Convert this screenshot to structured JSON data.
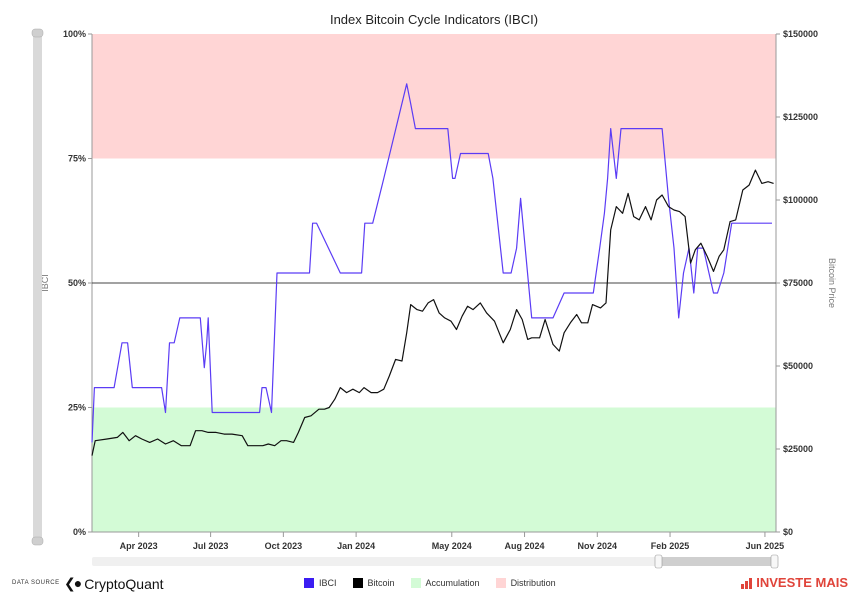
{
  "chart_data": {
    "type": "line",
    "title": "Index Bitcoin Cycle Indicators (IBCI)",
    "ylabel_left": "IBCI",
    "ylabel_right": "Bitcoin Price",
    "ylim_left": [
      0,
      100
    ],
    "ylim_right": [
      0,
      150000
    ],
    "yticks_left": [
      0,
      25,
      50,
      75,
      100
    ],
    "yticks_left_labels": [
      "0%",
      "25%",
      "50%",
      "75%",
      "100%"
    ],
    "yticks_right": [
      0,
      25000,
      50000,
      75000,
      100000,
      125000,
      150000
    ],
    "yticks_right_labels": [
      "$0",
      "$25000",
      "$50000",
      "$75000",
      "$100000",
      "$125000",
      "$150000"
    ],
    "xlim": [
      "2023-02-01",
      "2025-06-15"
    ],
    "xticks": [
      "2023-04-01",
      "2023-07-01",
      "2023-10-01",
      "2024-01-01",
      "2024-05-01",
      "2024-08-01",
      "2024-11-01",
      "2025-02-01",
      "2025-06-01"
    ],
    "xtick_labels": [
      "Apr 2023",
      "Jul 2023",
      "Oct 2023",
      "Jan 2024",
      "May 2024",
      "Aug 2024",
      "Nov 2024",
      "Feb 2025",
      "Jun 2025"
    ],
    "zones": [
      {
        "name": "Distribution",
        "from": 75,
        "to": 100,
        "color": "#ffd5d5"
      },
      {
        "name": "Accumulation",
        "from": 0,
        "to": 25,
        "color": "#d3fbd6"
      }
    ],
    "reference_line": 50,
    "series": [
      {
        "name": "IBCI",
        "color": "#5b3cf5",
        "axis": "left",
        "x": [
          "2023-02-01",
          "2023-02-04",
          "2023-03-01",
          "2023-03-11",
          "2023-03-18",
          "2023-03-24",
          "2023-04-01",
          "2023-04-30",
          "2023-05-05",
          "2023-05-10",
          "2023-05-16",
          "2023-05-23",
          "2023-06-01",
          "2023-06-18",
          "2023-06-23",
          "2023-06-26",
          "2023-06-28",
          "2023-07-03",
          "2023-07-15",
          "2023-08-15",
          "2023-09-01",
          "2023-09-04",
          "2023-09-09",
          "2023-09-16",
          "2023-09-23",
          "2023-10-15",
          "2023-11-03",
          "2023-11-07",
          "2023-11-12",
          "2023-12-12",
          "2023-12-16",
          "2023-12-22",
          "2024-01-02",
          "2024-01-08",
          "2024-01-12",
          "2024-01-22",
          "2024-02-05",
          "2024-03-05",
          "2024-03-10",
          "2024-03-16",
          "2024-03-24",
          "2024-04-05",
          "2024-04-18",
          "2024-04-26",
          "2024-05-02",
          "2024-05-05",
          "2024-05-12",
          "2024-05-19",
          "2024-05-25",
          "2024-06-16",
          "2024-06-22",
          "2024-07-05",
          "2024-07-15",
          "2024-07-22",
          "2024-07-27",
          "2024-08-10",
          "2024-08-16",
          "2024-09-01",
          "2024-09-06",
          "2024-09-20",
          "2024-10-06",
          "2024-10-14",
          "2024-10-20",
          "2024-10-27",
          "2024-11-04",
          "2024-11-10",
          "2024-11-14",
          "2024-11-18",
          "2024-11-25",
          "2024-12-01",
          "2024-12-18",
          "2025-01-15",
          "2025-01-22",
          "2025-01-30",
          "2025-02-06",
          "2025-02-12",
          "2025-02-18",
          "2025-02-25",
          "2025-03-03",
          "2025-03-08",
          "2025-03-15",
          "2025-03-28",
          "2025-04-02",
          "2025-04-10",
          "2025-04-20",
          "2025-04-30",
          "2025-05-15",
          "2025-06-10"
        ],
        "values": [
          18,
          29,
          29,
          38,
          38,
          29,
          29,
          29,
          24,
          38,
          38,
          43,
          43,
          43,
          33,
          38,
          43,
          24,
          24,
          24,
          24,
          29,
          29,
          24,
          52,
          52,
          52,
          62,
          62,
          52,
          52,
          52,
          52,
          52,
          62,
          62,
          71,
          90,
          86,
          81,
          81,
          81,
          81,
          81,
          71,
          71,
          76,
          76,
          76,
          76,
          71,
          52,
          52,
          57,
          67,
          43,
          43,
          43,
          43,
          48,
          48,
          48,
          48,
          48,
          57,
          64,
          71,
          81,
          71,
          81,
          81,
          81,
          81,
          67,
          57,
          43,
          52,
          57,
          48,
          57,
          57,
          48,
          48,
          52,
          62,
          62,
          62,
          62
        ]
      },
      {
        "name": "Bitcoin",
        "color": "#111111",
        "axis": "right",
        "x": [
          "2023-02-01",
          "2023-02-05",
          "2023-02-20",
          "2023-03-05",
          "2023-03-12",
          "2023-03-20",
          "2023-03-28",
          "2023-04-05",
          "2023-04-15",
          "2023-04-25",
          "2023-05-05",
          "2023-05-15",
          "2023-05-25",
          "2023-06-05",
          "2023-06-12",
          "2023-06-20",
          "2023-06-28",
          "2023-07-08",
          "2023-07-18",
          "2023-07-28",
          "2023-08-10",
          "2023-08-17",
          "2023-08-28",
          "2023-09-05",
          "2023-09-12",
          "2023-09-20",
          "2023-09-28",
          "2023-10-05",
          "2023-10-14",
          "2023-10-20",
          "2023-10-28",
          "2023-11-05",
          "2023-11-15",
          "2023-11-22",
          "2023-11-28",
          "2023-12-05",
          "2023-12-12",
          "2023-12-20",
          "2023-12-28",
          "2024-01-05",
          "2024-01-11",
          "2024-01-20",
          "2024-01-28",
          "2024-02-05",
          "2024-02-12",
          "2024-02-20",
          "2024-02-28",
          "2024-03-05",
          "2024-03-10",
          "2024-03-18",
          "2024-03-25",
          "2024-04-01",
          "2024-04-08",
          "2024-04-15",
          "2024-04-22",
          "2024-04-30",
          "2024-05-07",
          "2024-05-14",
          "2024-05-21",
          "2024-05-28",
          "2024-06-06",
          "2024-06-14",
          "2024-06-24",
          "2024-07-05",
          "2024-07-14",
          "2024-07-22",
          "2024-07-29",
          "2024-08-05",
          "2024-08-10",
          "2024-08-20",
          "2024-08-27",
          "2024-09-06",
          "2024-09-14",
          "2024-09-20",
          "2024-09-28",
          "2024-10-06",
          "2024-10-12",
          "2024-10-20",
          "2024-10-26",
          "2024-11-05",
          "2024-11-12",
          "2024-11-18",
          "2024-11-25",
          "2024-12-03",
          "2024-12-10",
          "2024-12-17",
          "2024-12-24",
          "2025-01-01",
          "2025-01-08",
          "2025-01-15",
          "2025-01-22",
          "2025-01-30",
          "2025-02-06",
          "2025-02-13",
          "2025-02-20",
          "2025-02-27",
          "2025-03-05",
          "2025-03-12",
          "2025-03-20",
          "2025-03-28",
          "2025-04-04",
          "2025-04-10",
          "2025-04-18",
          "2025-04-25",
          "2025-05-04",
          "2025-05-12",
          "2025-05-20",
          "2025-05-28",
          "2025-06-05",
          "2025-06-12"
        ],
        "values": [
          23000,
          27500,
          28000,
          28500,
          30000,
          27500,
          29000,
          28000,
          27000,
          28000,
          26500,
          27500,
          26000,
          26000,
          30500,
          30500,
          30000,
          30000,
          29500,
          29500,
          29000,
          26000,
          26000,
          26000,
          26500,
          26000,
          27500,
          27500,
          27000,
          30000,
          34500,
          35000,
          37000,
          37000,
          37500,
          40000,
          43500,
          42000,
          43000,
          42000,
          43500,
          42000,
          42000,
          43000,
          47000,
          52000,
          51500,
          60000,
          68500,
          67000,
          66500,
          69000,
          70000,
          66000,
          64500,
          63500,
          61000,
          65000,
          68000,
          67000,
          69000,
          66000,
          63500,
          57000,
          61000,
          67000,
          64000,
          58000,
          58500,
          58500,
          64000,
          56500,
          54500,
          60000,
          63000,
          65500,
          63000,
          63000,
          68500,
          67500,
          69000,
          91000,
          98000,
          96000,
          102000,
          95000,
          94000,
          98000,
          94000,
          100000,
          101500,
          98000,
          97000,
          96500,
          95000,
          81000,
          85000,
          87000,
          83000,
          78500,
          83000,
          85000,
          93500,
          94000,
          103000,
          104500,
          109000,
          105000,
          105500,
          105000
        ]
      }
    ]
  },
  "legend": {
    "items": [
      {
        "label": "IBCI",
        "color": "#3b1df2"
      },
      {
        "label": "Bitcoin",
        "color": "#000000"
      },
      {
        "label": "Accumulation",
        "color": "#d3fbd6"
      },
      {
        "label": "Distribution",
        "color": "#ffd5d5"
      }
    ]
  },
  "footer": {
    "source_label": "DATA SOURCE",
    "source_name": "CryptoQuant",
    "brand": "INVESTE MAIS"
  }
}
